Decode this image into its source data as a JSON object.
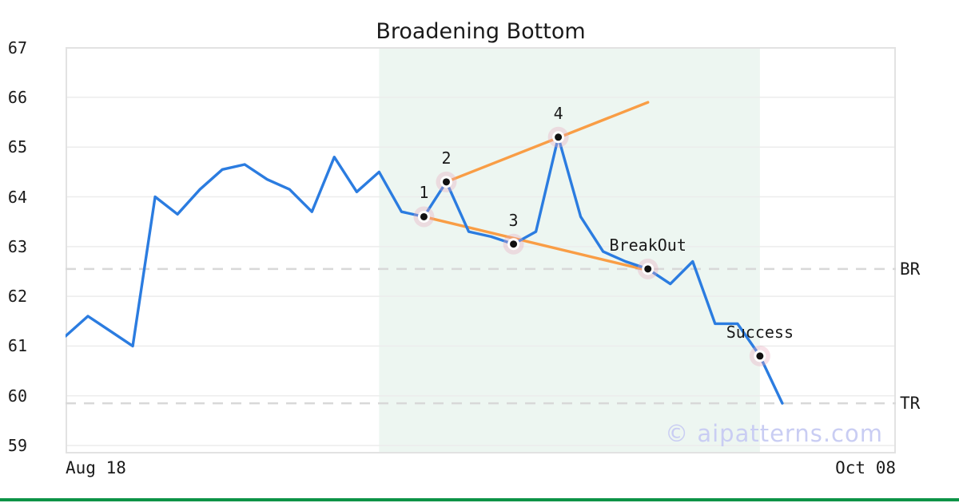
{
  "title": "Broadening Bottom",
  "watermark_text": "© aipatterns.com",
  "x_axis": {
    "left_label": "Aug 18",
    "right_label": "Oct 08"
  },
  "colors": {
    "price_line": "#2b7ce0",
    "trendline": "#f99d45",
    "shading": "#edf6f1",
    "grid": "#ececec",
    "border": "#e2e2e2",
    "dashed_level": "#d8d8d8",
    "marker_dot": "#111111",
    "marker_ring": "#ffffff",
    "marker_halo": "#e8a9bc",
    "text": "#1a1a1a",
    "watermark": "#c9cdf3",
    "accent_bar_green": "#0c9347"
  },
  "chart_data": {
    "type": "line",
    "title": "Broadening Bottom",
    "xlabel": "",
    "ylabel": "",
    "x_tick_labels": [
      "Aug 18",
      "Oct 08"
    ],
    "y_ticks": [
      59,
      60,
      61,
      62,
      63,
      64,
      65,
      66,
      67
    ],
    "ylim": [
      58.84,
      67.01
    ],
    "xlim": [
      0,
      37.07
    ],
    "grid": "horizontal-only",
    "legend": "none",
    "series": [
      {
        "name": "price",
        "x_unit": "trading-day-index",
        "values": [
          61.2,
          61.6,
          61.3,
          61.0,
          64.0,
          63.65,
          64.15,
          64.55,
          64.65,
          64.35,
          64.15,
          63.7,
          64.8,
          64.1,
          64.5,
          63.7,
          63.6,
          64.3,
          63.3,
          63.2,
          63.05,
          63.3,
          65.2,
          63.6,
          62.9,
          62.7,
          62.55,
          62.25,
          62.7,
          61.45,
          61.45,
          60.8,
          59.85
        ]
      }
    ],
    "pattern_shading": {
      "x_start": 14,
      "x_end": 31
    },
    "trendlines": [
      {
        "name": "upper-broadening-line",
        "points": [
          [
            17,
            64.3
          ],
          [
            26,
            65.9
          ]
        ]
      },
      {
        "name": "lower-broadening-line",
        "points": [
          [
            16,
            63.6
          ],
          [
            26.2,
            62.5
          ]
        ]
      }
    ],
    "horizontal_lines": [
      {
        "label": "BR",
        "value": 62.55,
        "style": "dashed"
      },
      {
        "label": "TR",
        "value": 59.85,
        "style": "dashed"
      }
    ],
    "key_points": [
      {
        "label": "1",
        "x": 16,
        "value": 63.6
      },
      {
        "label": "2",
        "x": 17,
        "value": 64.3
      },
      {
        "label": "3",
        "x": 20,
        "value": 63.05
      },
      {
        "label": "4",
        "x": 22,
        "value": 65.2
      },
      {
        "label": "BreakOut",
        "x": 26,
        "value": 62.55
      },
      {
        "label": "Success",
        "x": 31,
        "value": 60.8
      }
    ]
  }
}
